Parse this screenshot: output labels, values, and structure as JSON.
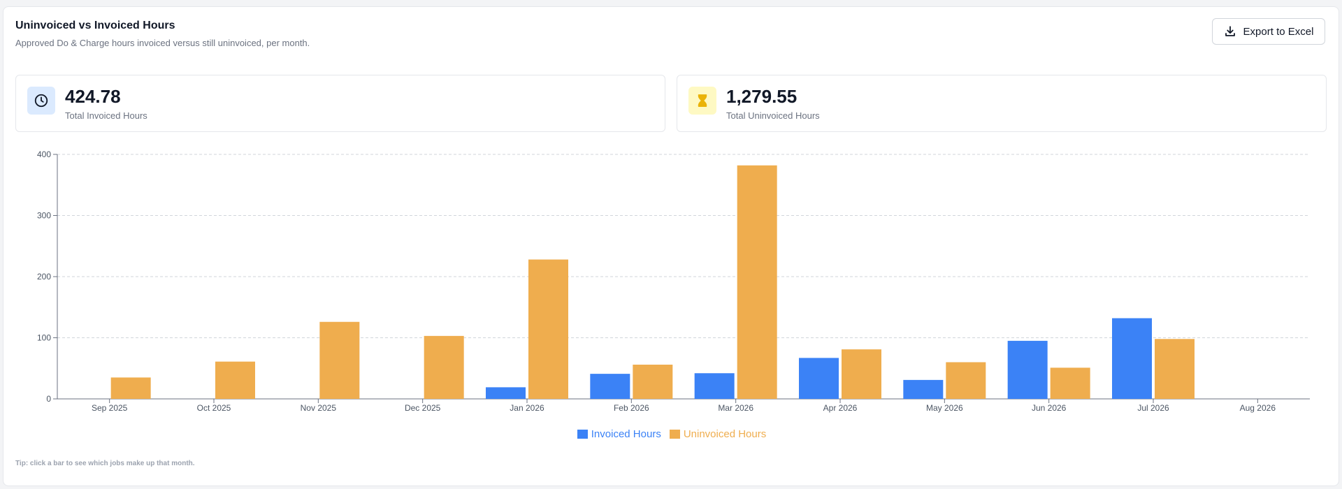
{
  "header": {
    "title": "Uninvoiced vs Invoiced Hours",
    "subtitle": "Approved Do & Charge hours invoiced versus still uninvoiced, per month.",
    "export_label": "Export to Excel"
  },
  "stats": {
    "invoiced": {
      "value": "424.78",
      "label": "Total Invoiced Hours",
      "icon": "clock-icon"
    },
    "uninvoiced": {
      "value": "1,279.55",
      "label": "Total Uninvoiced Hours",
      "icon": "hourglass-icon"
    }
  },
  "colors": {
    "invoiced": "#3b82f6",
    "uninvoiced": "#efad4e"
  },
  "chart_data": {
    "type": "bar",
    "categories": [
      "Sep 2025",
      "Oct 2025",
      "Nov 2025",
      "Dec 2025",
      "Jan 2026",
      "Feb 2026",
      "Mar 2026",
      "Apr 2026",
      "May 2026",
      "Jun 2026",
      "Jul 2026",
      "Aug 2026"
    ],
    "series": [
      {
        "name": "Invoiced Hours",
        "values": [
          0,
          0,
          0,
          0,
          19,
          41,
          42,
          67,
          31,
          95,
          132,
          0
        ]
      },
      {
        "name": "Uninvoiced Hours",
        "values": [
          35,
          61,
          126,
          103,
          228,
          56,
          382,
          81,
          60,
          51,
          98,
          0
        ]
      }
    ],
    "ylim": [
      0,
      400
    ],
    "yticks": [
      0,
      100,
      200,
      300,
      400
    ],
    "grid": true,
    "legend": "bottom-center",
    "title": "",
    "xlabel": "",
    "ylabel": ""
  },
  "footer": {
    "tip": "Tip: click a bar to see which jobs make up that month."
  }
}
